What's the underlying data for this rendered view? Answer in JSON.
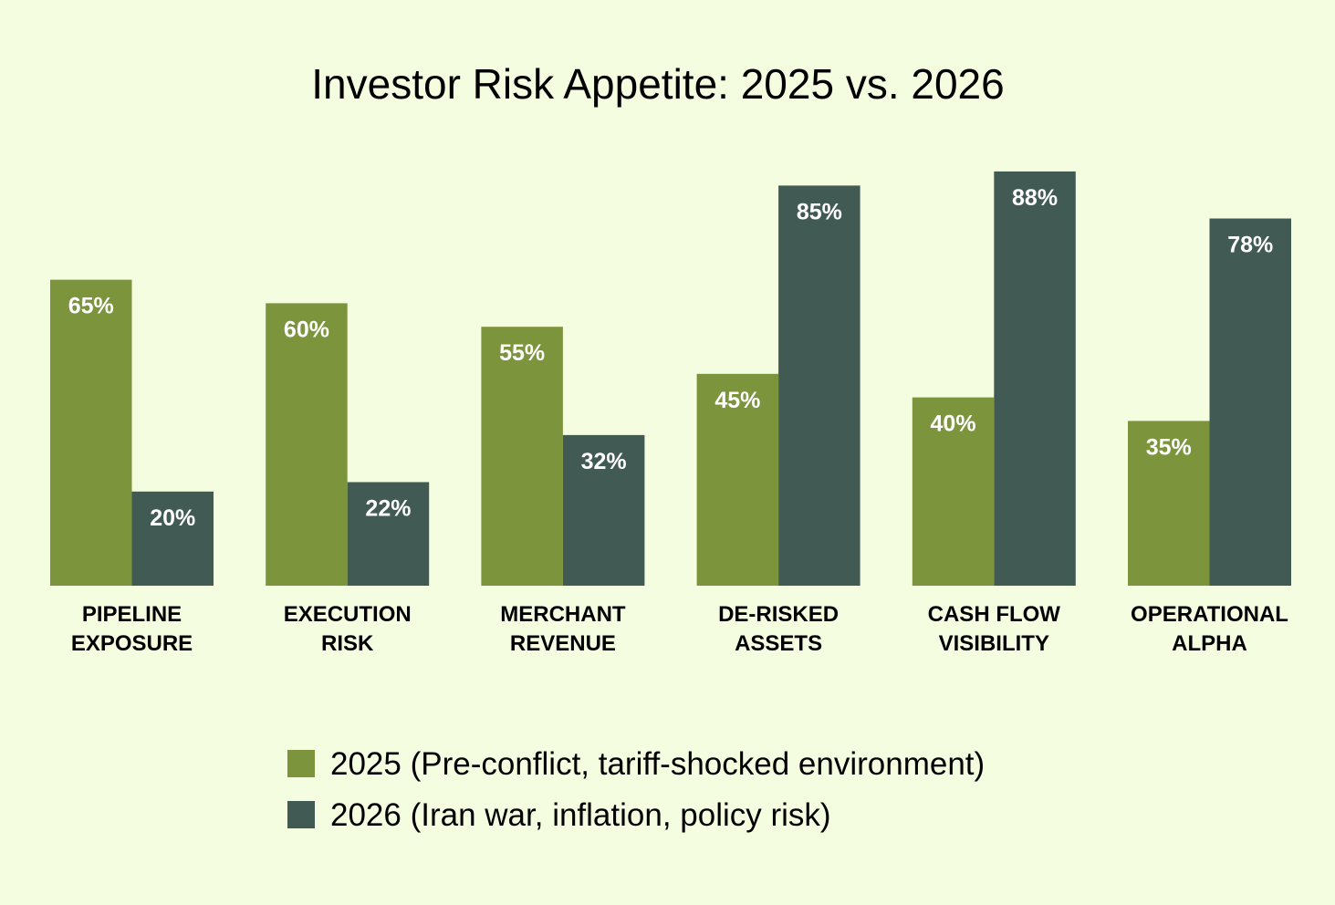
{
  "chart_data": {
    "type": "bar",
    "title": "Investor Risk Appetite: 2025 vs. 2026",
    "xlabel": "",
    "ylabel": "",
    "ylim": [
      0,
      100
    ],
    "grid": false,
    "legend_position": "bottom-center",
    "categories": [
      [
        "PIPELINE",
        "EXPOSURE"
      ],
      [
        "EXECUTION",
        "RISK"
      ],
      [
        "MERCHANT",
        "REVENUE"
      ],
      [
        "DE-RISKED",
        "ASSETS"
      ],
      [
        "CASH FLOW",
        "VISIBILITY"
      ],
      [
        "OPERATIONAL",
        "ALPHA"
      ]
    ],
    "series": [
      {
        "name": "2025 (Pre-conflict, tariff-shocked environment)",
        "color": "#7c953c",
        "values": [
          65,
          60,
          55,
          45,
          40,
          35
        ],
        "labels": [
          "65%",
          "60%",
          "55%",
          "45%",
          "40%",
          "35%"
        ]
      },
      {
        "name": "2026 (Iran war, inflation, policy risk)",
        "color": "#425a54",
        "values": [
          20,
          22,
          32,
          85,
          88,
          78
        ],
        "labels": [
          "20%",
          "22%",
          "32%",
          "85%",
          "88%",
          "78%"
        ]
      }
    ]
  },
  "colors": {
    "background": "#f5fde0",
    "text": "#000000",
    "bar_label": "#ffffff"
  }
}
